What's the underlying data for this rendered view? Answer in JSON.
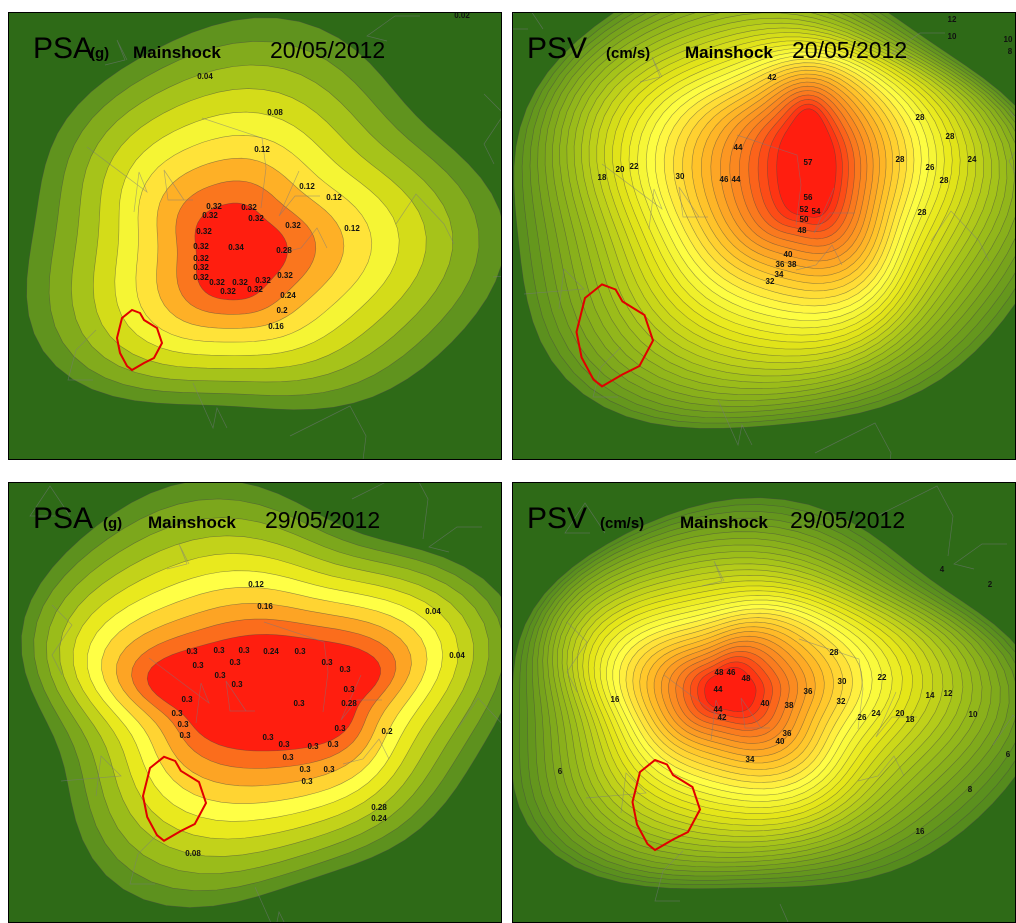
{
  "panels": [
    {
      "quantity": "PSA",
      "unit": "(g)",
      "event": "Mainshock",
      "date": "20/05/2012",
      "labels": [
        "0.02",
        "0.04",
        "0.08",
        "0.12",
        "0.12",
        "0.12",
        "0.12",
        "0.32",
        "0.32",
        "0.32",
        "0.32",
        "0.32",
        "0.32",
        "0.32",
        "0.32",
        "0.32",
        "0.32",
        "0.32",
        "0.32",
        "0.32",
        "0.32",
        "0.32",
        "0.34",
        "0.28",
        "0.24",
        "0.2",
        "0.16",
        "0.32"
      ]
    },
    {
      "quantity": "PSV",
      "unit": "(cm/s)",
      "event": "Mainshock",
      "date": "20/05/2012",
      "labels": [
        "12",
        "10",
        "10",
        "8",
        "42",
        "28",
        "28",
        "44",
        "57",
        "28",
        "26",
        "24",
        "28",
        "18",
        "20",
        "22",
        "30",
        "46",
        "44",
        "56",
        "52",
        "54",
        "50",
        "48",
        "28",
        "40",
        "36",
        "38",
        "34",
        "32"
      ]
    },
    {
      "quantity": "PSA",
      "unit": "(g)",
      "event": "Mainshock",
      "date": "29/05/2012",
      "labels": [
        "0.12",
        "0.16",
        "0.04",
        "0.04",
        "0.24",
        "0.28",
        "0.2",
        "0.28",
        "0.24",
        "0.08",
        "0.3",
        "0.3",
        "0.3",
        "0.3",
        "0.3",
        "0.3",
        "0.3",
        "0.3",
        "0.3",
        "0.3",
        "0.3",
        "0.3",
        "0.3",
        "0.3",
        "0.3",
        "0.3",
        "0.3",
        "0.3",
        "0.3",
        "0.3",
        "0.3",
        "0.3",
        "0.3",
        "0.3",
        "0.3"
      ]
    },
    {
      "quantity": "PSV",
      "unit": "(cm/s)",
      "event": "Mainshock",
      "date": "29/05/2012",
      "labels": [
        "4",
        "2",
        "28",
        "22",
        "30",
        "16",
        "48",
        "46",
        "48",
        "44",
        "14",
        "12",
        "10",
        "36",
        "40",
        "38",
        "32",
        "26",
        "24",
        "20",
        "18",
        "44",
        "42",
        "6",
        "36",
        "40",
        "34",
        "6",
        "8",
        "16"
      ]
    }
  ]
}
